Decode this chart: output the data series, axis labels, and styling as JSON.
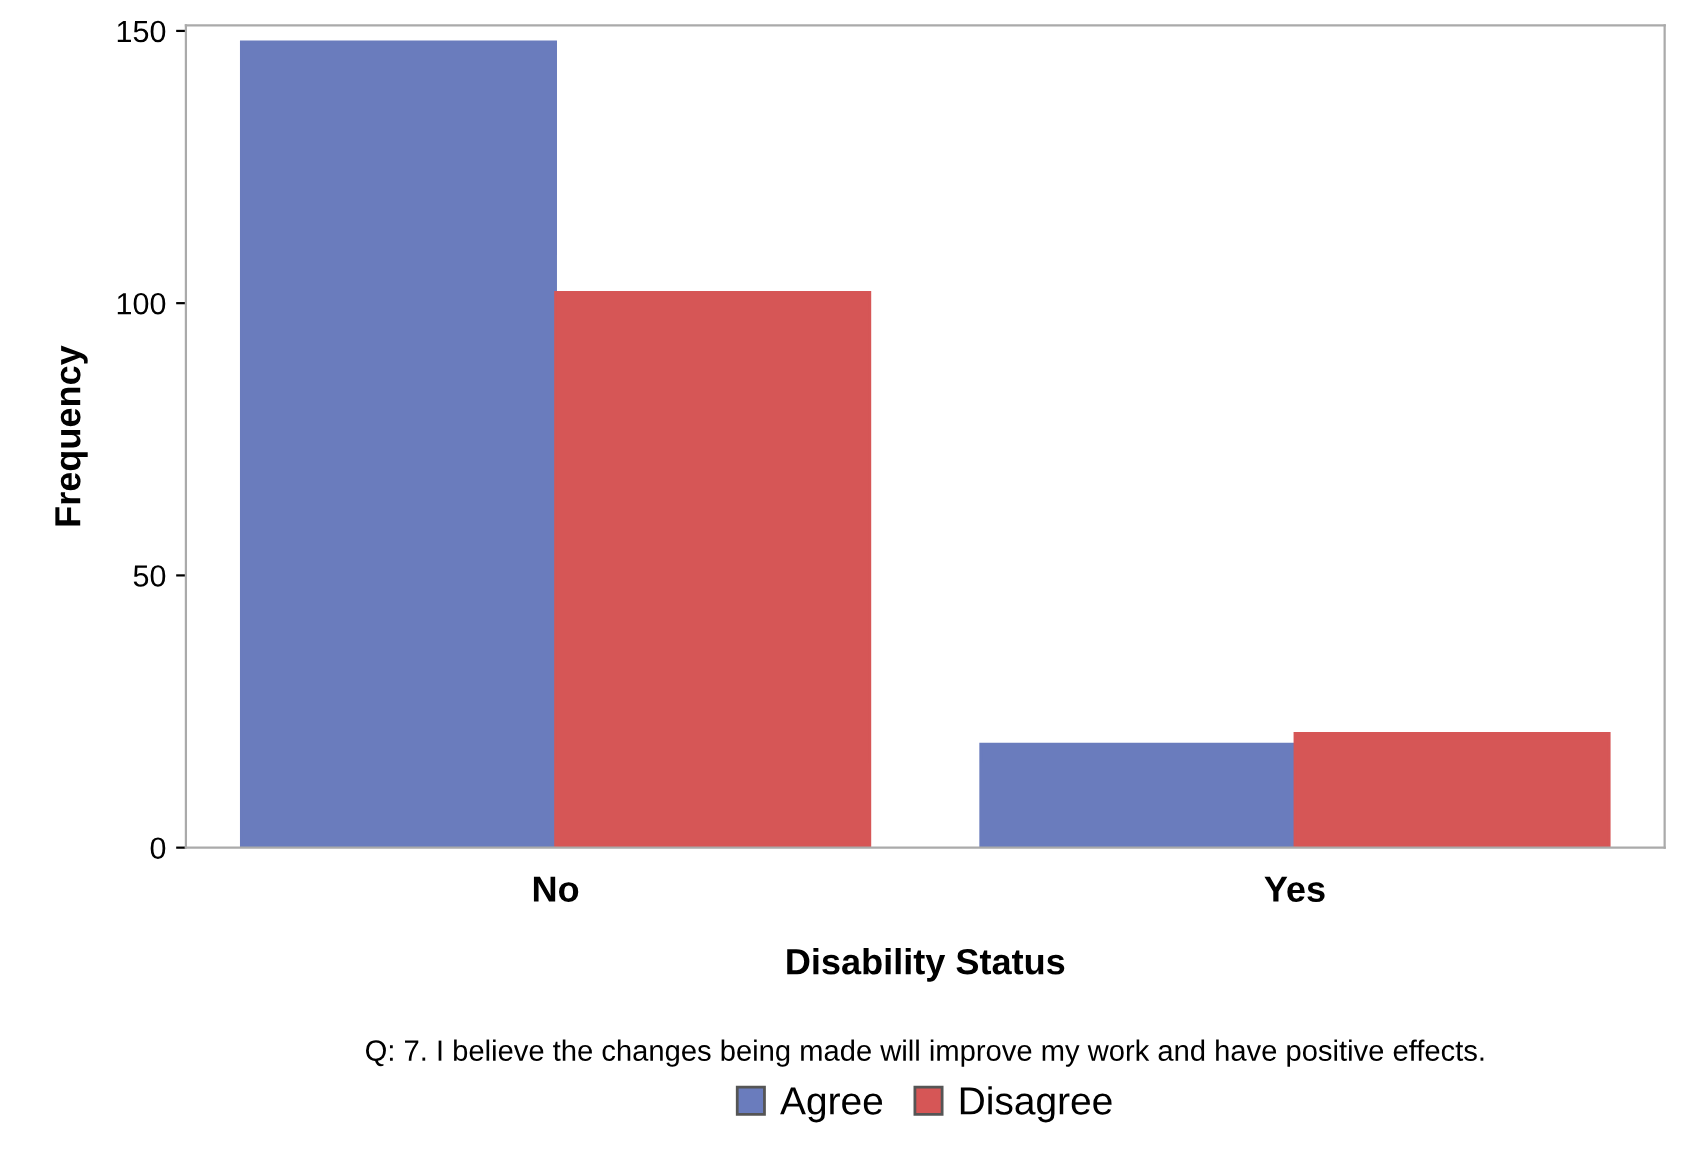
{
  "chart_data": {
    "type": "bar",
    "xlabel": "Disability Status",
    "ylabel": "Frequency",
    "legend_title": "Q: 7. I believe the changes being made will improve my work and have positive effects.",
    "categories": [
      "No",
      "Yes"
    ],
    "series": [
      {
        "name": "Agree",
        "color": "#6a7cbd",
        "values": [
          148,
          19
        ]
      },
      {
        "name": "Disagree",
        "color": "#d65656",
        "values": [
          102,
          21
        ]
      }
    ],
    "ylim": [
      0,
      151
    ],
    "yticks": [
      0,
      50,
      100,
      150
    ],
    "legend": "bottom",
    "grid": false
  }
}
